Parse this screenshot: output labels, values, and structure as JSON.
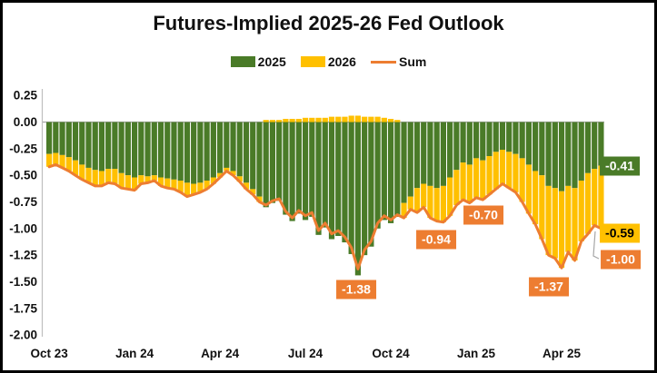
{
  "chart_data": {
    "type": "bar",
    "subtype": "stacked-bar-with-line",
    "title": "Futures-Implied 2025-26 Fed Outlook",
    "legend": [
      {
        "name": "2025",
        "swatch": "rect",
        "color": "#4A7B28"
      },
      {
        "name": "2026",
        "swatch": "rect",
        "color": "#FFC000"
      },
      {
        "name": "Sum",
        "swatch": "line",
        "color": "#ED7D31"
      }
    ],
    "colors": {
      "bar_2025": "#4A7B28",
      "bar_2026": "#FFC000",
      "sum_line": "#ED7D31",
      "axis_line": "#BFBFBF",
      "zero_line": "#A6A6A6",
      "callout": "#A6A6A6",
      "text": "#111111"
    },
    "y_axis": {
      "min": -2.0,
      "max": 0.25,
      "step": 0.25,
      "tick_labels": [
        "0.25",
        "0.00",
        "-0.25",
        "-0.50",
        "-0.75",
        "-1.00",
        "-1.25",
        "-1.50",
        "-1.75",
        "-2.00"
      ],
      "gridlines": false
    },
    "x_axis": {
      "unit": "weekly",
      "ticks": [
        {
          "label": "Oct 23",
          "index": 0
        },
        {
          "label": "Jan 24",
          "index": 13
        },
        {
          "label": "Apr 24",
          "index": 26
        },
        {
          "label": "Jul 24",
          "index": 39
        },
        {
          "label": "Oct 24",
          "index": 52
        },
        {
          "label": "Jan 25",
          "index": 65
        },
        {
          "label": "Apr 25",
          "index": 78
        }
      ]
    },
    "series": [
      {
        "name": "2025",
        "type": "bar",
        "color": "#4A7B28",
        "values": [
          -0.3,
          -0.29,
          -0.31,
          -0.33,
          -0.36,
          -0.4,
          -0.43,
          -0.45,
          -0.46,
          -0.44,
          -0.44,
          -0.48,
          -0.5,
          -0.52,
          -0.5,
          -0.51,
          -0.5,
          -0.52,
          -0.53,
          -0.54,
          -0.55,
          -0.57,
          -0.58,
          -0.57,
          -0.55,
          -0.52,
          -0.48,
          -0.43,
          -0.46,
          -0.51,
          -0.57,
          -0.63,
          -0.7,
          -0.8,
          -0.76,
          -0.74,
          -0.87,
          -0.93,
          -0.86,
          -0.92,
          -0.89,
          -1.06,
          -0.99,
          -1.1,
          -1.07,
          -1.13,
          -1.24,
          -1.44,
          -1.25,
          -1.17,
          -1.0,
          -0.92,
          -0.95,
          -0.89,
          -0.76,
          -0.7,
          -0.62,
          -0.58,
          -0.6,
          -0.62,
          -0.6,
          -0.52,
          -0.45,
          -0.38,
          -0.4,
          -0.34,
          -0.36,
          -0.32,
          -0.28,
          -0.26,
          -0.28,
          -0.3,
          -0.34,
          -0.4,
          -0.46,
          -0.5,
          -0.6,
          -0.62,
          -0.65,
          -0.6,
          -0.62,
          -0.55,
          -0.48,
          -0.44,
          -0.41
        ]
      },
      {
        "name": "2026",
        "type": "bar",
        "color": "#FFC000",
        "values": [
          -0.12,
          -0.11,
          -0.12,
          -0.13,
          -0.14,
          -0.14,
          -0.14,
          -0.15,
          -0.14,
          -0.13,
          -0.14,
          -0.14,
          -0.13,
          -0.12,
          -0.08,
          -0.06,
          -0.05,
          -0.08,
          -0.09,
          -0.09,
          -0.11,
          -0.13,
          -0.1,
          -0.09,
          -0.08,
          -0.06,
          -0.04,
          -0.03,
          -0.04,
          -0.05,
          -0.06,
          -0.05,
          -0.05,
          0.02,
          0.02,
          0.02,
          0.03,
          0.03,
          0.03,
          0.04,
          0.04,
          0.04,
          0.04,
          0.05,
          0.05,
          0.05,
          0.06,
          0.06,
          0.05,
          0.05,
          0.05,
          0.04,
          0.03,
          0.02,
          -0.14,
          -0.12,
          -0.23,
          -0.22,
          -0.3,
          -0.31,
          -0.34,
          -0.36,
          -0.33,
          -0.35,
          -0.36,
          -0.37,
          -0.37,
          -0.36,
          -0.35,
          -0.32,
          -0.34,
          -0.36,
          -0.41,
          -0.46,
          -0.5,
          -0.6,
          -0.65,
          -0.66,
          -0.72,
          -0.62,
          -0.68,
          -0.57,
          -0.57,
          -0.53,
          -0.59
        ]
      },
      {
        "name": "Sum",
        "type": "line",
        "color": "#ED7D31",
        "values": [
          -0.42,
          -0.4,
          -0.43,
          -0.46,
          -0.5,
          -0.54,
          -0.57,
          -0.6,
          -0.6,
          -0.57,
          -0.58,
          -0.62,
          -0.63,
          -0.64,
          -0.58,
          -0.57,
          -0.55,
          -0.6,
          -0.62,
          -0.63,
          -0.66,
          -0.7,
          -0.68,
          -0.66,
          -0.63,
          -0.58,
          -0.52,
          -0.46,
          -0.5,
          -0.56,
          -0.63,
          -0.68,
          -0.75,
          -0.78,
          -0.74,
          -0.72,
          -0.84,
          -0.9,
          -0.83,
          -0.88,
          -0.85,
          -1.02,
          -0.95,
          -1.05,
          -1.02,
          -1.08,
          -1.18,
          -1.38,
          -1.2,
          -1.12,
          -0.95,
          -0.88,
          -0.92,
          -0.87,
          -0.9,
          -0.82,
          -0.85,
          -0.8,
          -0.9,
          -0.93,
          -0.94,
          -0.88,
          -0.78,
          -0.73,
          -0.76,
          -0.71,
          -0.73,
          -0.68,
          -0.63,
          -0.58,
          -0.62,
          -0.66,
          -0.75,
          -0.86,
          -0.96,
          -1.1,
          -1.25,
          -1.28,
          -1.37,
          -1.22,
          -1.3,
          -1.12,
          -1.05,
          -0.97,
          -1.0
        ]
      }
    ],
    "annotations": [
      {
        "text": "-1.38",
        "series": "Sum",
        "cx": 389,
        "cy": 316,
        "bg": "#ED7D31",
        "fg": "#FFFFFF"
      },
      {
        "text": "-0.94",
        "series": "Sum",
        "cx": 477,
        "cy": 261,
        "bg": "#ED7D31",
        "fg": "#FFFFFF"
      },
      {
        "text": "-0.70",
        "series": "Sum",
        "cx": 529,
        "cy": 234,
        "bg": "#ED7D31",
        "fg": "#FFFFFF"
      },
      {
        "text": "-1.37",
        "series": "Sum",
        "cx": 601,
        "cy": 313,
        "bg": "#ED7D31",
        "fg": "#FFFFFF"
      },
      {
        "text": "-0.41",
        "series": "2025",
        "cx": 679,
        "cy": 180,
        "bg": "#4A7B28",
        "fg": "#FFFFFF"
      },
      {
        "text": "-0.59",
        "series": "2026",
        "cx": 679,
        "cy": 254,
        "bg": "#FFC000",
        "fg": "#000000"
      },
      {
        "text": "-1.00",
        "series": "Sum",
        "cx": 680,
        "cy": 283,
        "bg": "#ED7D31",
        "fg": "#FFFFFF"
      }
    ],
    "callout": {
      "points": [
        [
          652,
          252
        ],
        [
          650,
          279
        ],
        [
          656,
          282
        ]
      ]
    }
  }
}
